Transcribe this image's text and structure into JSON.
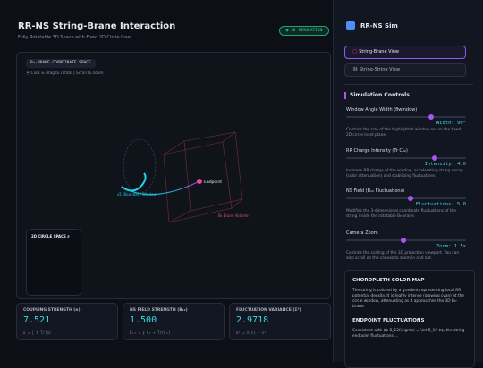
{
  "header": {
    "title": "RR-NS String-Brane Interaction",
    "subtitle": "Fully Rotatable 3D Space with Fixed 2D Circle Inset",
    "badge": "3D SIMULATION"
  },
  "viewport": {
    "label": "B₈-BRANE COORDINATE SPACE",
    "hint": "Click & drag to rotate | Scroll to zoom",
    "endpoint_label": "Endpoint",
    "boundary_label": "∂Σ (Boundary Window)",
    "brane_label": "B₈ Brane Volume",
    "inset_label": "2D CIRCLE SPACE ∂"
  },
  "stats": [
    {
      "label": "COUPLING STRENGTH (κ)",
      "value": "7.521",
      "formula": "κ = ∫ Σ Tr(Ω)"
    },
    {
      "label": "NS FIELD STRENGTH (B₁₂)",
      "value": "1.500",
      "formula": "B₁₂ = ∮ C₁ + Tr(C₂)"
    },
    {
      "label": "FLUCTUATION VARIANCE (Σ²)",
      "value": "2.9718",
      "formula": "σ² = Σ(ε) − ε²"
    }
  ],
  "sidebar": {
    "app_name": "RR-NS Sim",
    "views": [
      "String-Brane View",
      "String-String View"
    ],
    "controls_title": "Simulation Controls",
    "controls": [
      {
        "label": "Window Angle Width (θwindow)",
        "readout": "Width: 90°",
        "description": "Controls the size of the highlighted window arc on the fixed 2D circle inset plane."
      },
      {
        "label": "RR Charge Intensity (Tr C₃₂)",
        "readout": "Intensity: 4.0",
        "description": "Increase RR charge of the window, accelerating string decay (color attenuation) and stabilizing fluctuations."
      },
      {
        "label": "NS Field (B₁₂ Fluctuations)",
        "readout": "Fluctuations: 5.0",
        "description": "Modifies the 3-dimensional coordinate fluctuations of the string inside the rotatable B₈-brane."
      },
      {
        "label": "Camera Zoom",
        "readout": "Zoom: 1.5x",
        "description": "Controls the scaling of the 3D projection viewport. You can also scroll on the canvas to zoom in and out."
      }
    ],
    "info": [
      {
        "title": "CHOROPLETH COLOR MAP",
        "body": "The string is colored by a gradient representing local RR potential density. It is highly intense (glowing cyan) at the circle window, attenuating as it approaches the 3D B₈-brane."
      },
      {
        "title": "ENDPOINT FLUCTUATIONS",
        "body": "Consistent with $$ B_12(\\sigma) = \\int B_12 $$, the string endpoint fluctuations ..."
      }
    ]
  }
}
